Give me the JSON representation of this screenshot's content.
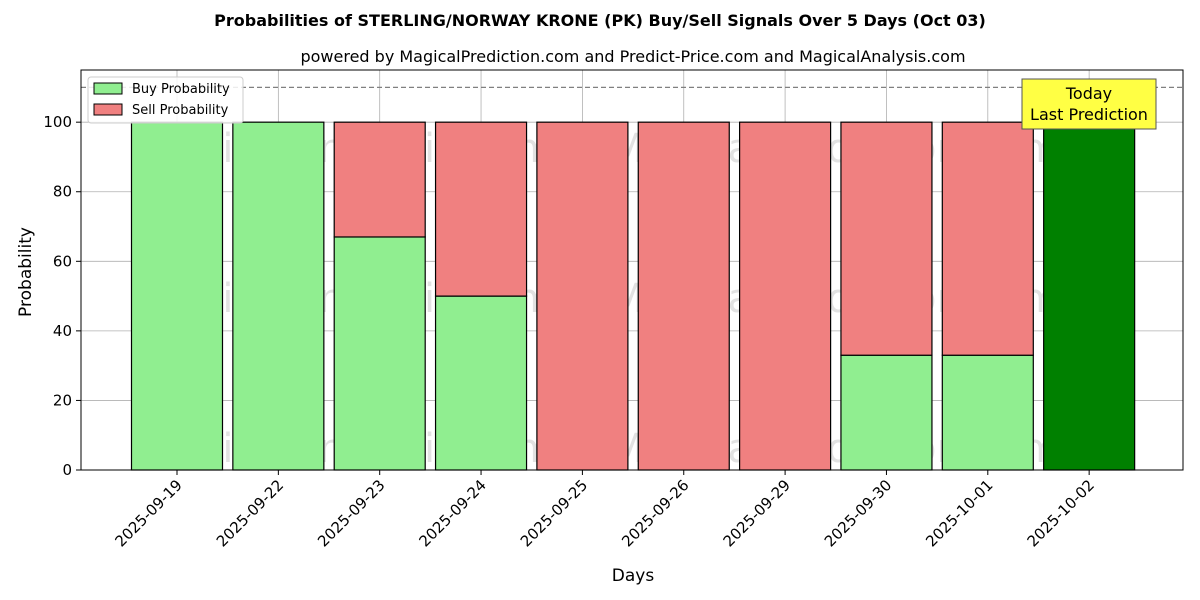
{
  "chart_data": {
    "type": "bar",
    "stacked": true,
    "title": "Probabilities of STERLING/NORWAY KRONE (PK) Buy/Sell Signals Over 5 Days (Oct 03)",
    "subtitle": "powered by MagicalPrediction.com and Predict-Price.com and MagicalAnalysis.com",
    "xlabel": "Days",
    "ylabel": "Probability",
    "ylim": [
      0,
      115
    ],
    "yticks": [
      0,
      20,
      40,
      60,
      80,
      100
    ],
    "reference_line": 110,
    "grid": true,
    "legend_position": "top-left",
    "categories": [
      "2025-09-19",
      "2025-09-22",
      "2025-09-23",
      "2025-09-24",
      "2025-09-25",
      "2025-09-26",
      "2025-09-29",
      "2025-09-30",
      "2025-10-01",
      "2025-10-02"
    ],
    "series": [
      {
        "name": "Buy Probability",
        "color": "#90ee90",
        "values": [
          100,
          100,
          67,
          50,
          0,
          0,
          0,
          33,
          33,
          100
        ]
      },
      {
        "name": "Sell Probability",
        "color": "#f08080",
        "values": [
          0,
          0,
          33,
          50,
          100,
          100,
          100,
          67,
          67,
          0
        ]
      }
    ],
    "highlight": {
      "index": 9,
      "color": "#008000"
    },
    "annotation": {
      "line1": "Today",
      "line2": "Last Prediction",
      "color": "#ffff44"
    },
    "watermarks": [
      "MagicalAnalysis.com",
      "MagicalPrediction.com"
    ]
  }
}
